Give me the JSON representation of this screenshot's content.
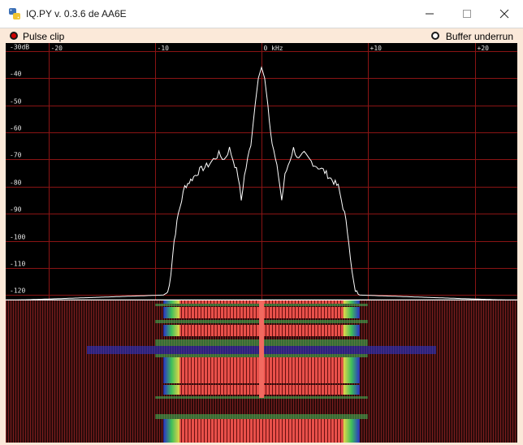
{
  "window": {
    "title": "IQ.PY v. 0.3.6 de AA6E",
    "app_icon": "python-icon",
    "buttons": [
      "minimize-icon",
      "maximize-icon",
      "close-icon"
    ]
  },
  "status": {
    "pulse_clip": "Pulse clip",
    "buffer_underrun": "Buffer underrun"
  },
  "chart_data": {
    "type": "line",
    "title": "",
    "xlabel": "kHz",
    "ylabel": "dB",
    "x_ticks": [
      "-20",
      "-10",
      "0 kHz",
      "+10",
      "+20"
    ],
    "x_tick_values": [
      -20,
      -10,
      0,
      10,
      20
    ],
    "y_ticks": [
      "-30dB",
      "-40",
      "-50",
      "-60",
      "-70",
      "-80",
      "-90",
      "-100",
      "-110",
      "-120"
    ],
    "y_tick_values": [
      -30,
      -40,
      -50,
      -60,
      -70,
      -80,
      -90,
      -100,
      -110,
      -120
    ],
    "xlim": [
      -24,
      24
    ],
    "ylim": [
      -122,
      -27
    ],
    "grid": true,
    "series": [
      {
        "x": [
          -24,
          -9.2,
          -8.8,
          -8.5,
          -8.2,
          -7.8,
          -7.2,
          -6.5,
          -5.8,
          -5.0,
          -4.5,
          -4.0,
          -3.5,
          -3.0,
          -2.5,
          -2.2,
          -1.9,
          -1.6,
          -1.3,
          -1.0,
          -0.6,
          -0.3,
          0,
          0.3,
          0.6,
          1.0,
          1.3,
          1.6,
          1.9,
          2.2,
          2.5,
          3.0,
          3.5,
          4.0,
          4.5,
          5.0,
          5.8,
          6.5,
          7.2,
          7.8,
          8.2,
          8.5,
          8.8,
          9.2,
          24
        ],
        "y": [
          -122,
          -120,
          -119,
          -112,
          -100,
          -90,
          -80,
          -77,
          -74,
          -72,
          -70,
          -68,
          -70,
          -66,
          -72,
          -76,
          -85,
          -76,
          -70,
          -64,
          -50,
          -40,
          -36,
          -40,
          -50,
          -64,
          -70,
          -76,
          -85,
          -76,
          -72,
          -66,
          -70,
          -68,
          -70,
          -72,
          -74,
          -77,
          -80,
          -90,
          -100,
          -112,
          -119,
          -120,
          -122
        ]
      }
    ]
  }
}
